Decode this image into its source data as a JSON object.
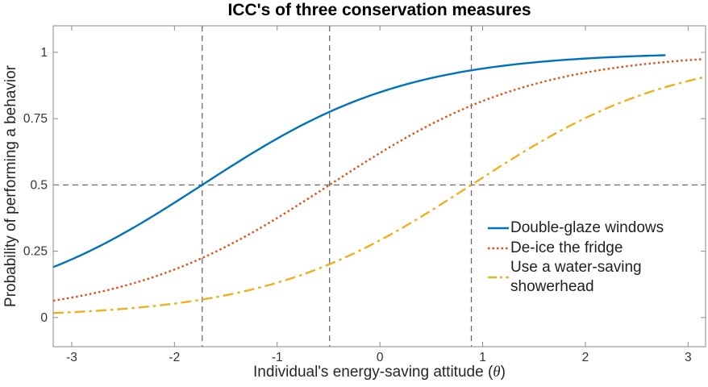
{
  "figure": {
    "title": "ICC's of three conservation measures",
    "ylabel": "Probability of performing a behavior",
    "xlabel_pre": "Individual's energy-saving attitude (",
    "xlabel_theta": "θ",
    "xlabel_post": ")"
  },
  "chart_data": {
    "type": "line",
    "title": "ICC's of three conservation measures",
    "xlabel": "Individual's energy-saving attitude (θ)",
    "ylabel": "Probability of performing a behavior",
    "xlim": [
      -3.18,
      3.17
    ],
    "ylim": [
      -0.11,
      1.1
    ],
    "x_ticks": [
      -3,
      -2,
      -1,
      0,
      1,
      2,
      3
    ],
    "x_tick_labels": [
      "-3",
      "-2",
      "-1",
      "0",
      "1",
      "2",
      "3"
    ],
    "y_ticks": [
      0,
      0.25,
      0.5,
      0.75,
      1
    ],
    "y_tick_labels": [
      "0",
      "0.25",
      "0.5",
      "0.75",
      "1"
    ],
    "grid": false,
    "legend_position": "inside lower right, no box",
    "model": "logistic ICC: P(theta) = 1 / (1 + exp(-a*(theta - b)))",
    "series": [
      {
        "name": "Double-glaze windows",
        "color": "#0072BD",
        "style": "solid",
        "a": 1.0,
        "b": -1.73,
        "x_start": -3.18,
        "x_end": 2.8,
        "sample_points": [
          {
            "x": -3.0,
            "y": 0.22
          },
          {
            "x": -2.0,
            "y": 0.43
          },
          {
            "x": -1.73,
            "y": 0.5
          },
          {
            "x": -1.0,
            "y": 0.67
          },
          {
            "x": 0.0,
            "y": 0.85
          },
          {
            "x": 1.0,
            "y": 0.94
          },
          {
            "x": 2.0,
            "y": 0.98
          },
          {
            "x": 2.8,
            "y": 0.99
          }
        ]
      },
      {
        "name": "De-ice the fridge",
        "color": "#D95319",
        "style": "dotted",
        "a": 1.0,
        "b": -0.49,
        "x_start": -3.18,
        "x_end": 3.17,
        "sample_points": [
          {
            "x": -3.0,
            "y": 0.08
          },
          {
            "x": -2.0,
            "y": 0.18
          },
          {
            "x": -1.0,
            "y": 0.38
          },
          {
            "x": -0.49,
            "y": 0.5
          },
          {
            "x": 0.0,
            "y": 0.62
          },
          {
            "x": 1.0,
            "y": 0.82
          },
          {
            "x": 2.0,
            "y": 0.92
          },
          {
            "x": 3.0,
            "y": 0.97
          }
        ]
      },
      {
        "name": "Use a water-saving showerhead",
        "color": "#EDB120",
        "style": "dashdot",
        "a": 1.0,
        "b": 0.89,
        "x_start": -3.18,
        "x_end": 3.17,
        "sample_points": [
          {
            "x": -3.0,
            "y": 0.02
          },
          {
            "x": -2.0,
            "y": 0.05
          },
          {
            "x": -1.0,
            "y": 0.13
          },
          {
            "x": 0.0,
            "y": 0.29
          },
          {
            "x": 0.89,
            "y": 0.5
          },
          {
            "x": 2.0,
            "y": 0.75
          },
          {
            "x": 3.0,
            "y": 0.89
          }
        ]
      }
    ],
    "reference_lines": {
      "vertical_x": [
        -1.73,
        -0.49,
        0.89
      ],
      "horizontal_y": [
        0.5
      ],
      "color": "#6B6B6B",
      "style": "dashed"
    },
    "colors": {
      "axis_box": "#8A8A8A",
      "tick_text": "#333333",
      "label_text": "#262626"
    }
  },
  "legend": {
    "items": [
      {
        "label": "Double-glaze windows"
      },
      {
        "label": "De-ice the fridge"
      },
      {
        "label": "Use a water-saving showerhead"
      }
    ]
  }
}
